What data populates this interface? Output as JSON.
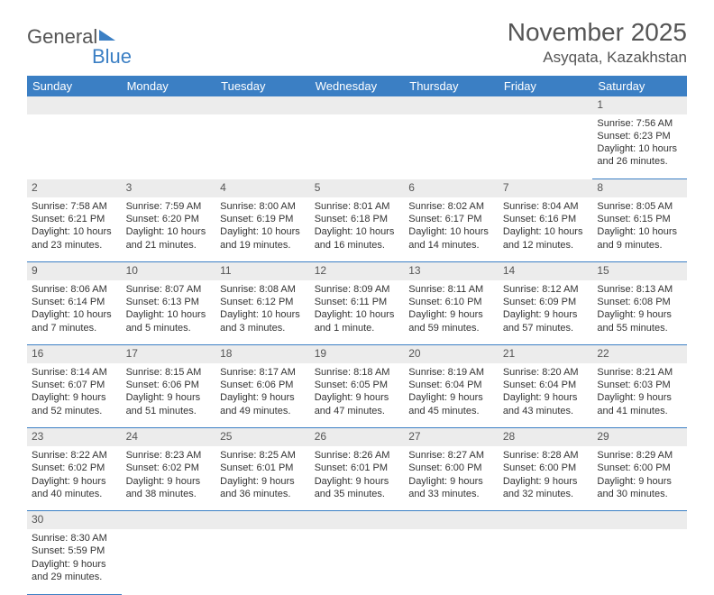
{
  "logo": {
    "general": "General",
    "blue": "Blue"
  },
  "title": {
    "month": "November 2025",
    "location": "Asyqata, Kazakhstan"
  },
  "colors": {
    "header_bg": "#3b7fc4",
    "daynum_bg": "#ececec",
    "border": "#3b7fc4"
  },
  "weekdays": [
    "Sunday",
    "Monday",
    "Tuesday",
    "Wednesday",
    "Thursday",
    "Friday",
    "Saturday"
  ],
  "weeks": [
    [
      null,
      null,
      null,
      null,
      null,
      null,
      {
        "n": "1",
        "sunrise": "Sunrise: 7:56 AM",
        "sunset": "Sunset: 6:23 PM",
        "day1": "Daylight: 10 hours",
        "day2": "and 26 minutes."
      }
    ],
    [
      {
        "n": "2",
        "sunrise": "Sunrise: 7:58 AM",
        "sunset": "Sunset: 6:21 PM",
        "day1": "Daylight: 10 hours",
        "day2": "and 23 minutes."
      },
      {
        "n": "3",
        "sunrise": "Sunrise: 7:59 AM",
        "sunset": "Sunset: 6:20 PM",
        "day1": "Daylight: 10 hours",
        "day2": "and 21 minutes."
      },
      {
        "n": "4",
        "sunrise": "Sunrise: 8:00 AM",
        "sunset": "Sunset: 6:19 PM",
        "day1": "Daylight: 10 hours",
        "day2": "and 19 minutes."
      },
      {
        "n": "5",
        "sunrise": "Sunrise: 8:01 AM",
        "sunset": "Sunset: 6:18 PM",
        "day1": "Daylight: 10 hours",
        "day2": "and 16 minutes."
      },
      {
        "n": "6",
        "sunrise": "Sunrise: 8:02 AM",
        "sunset": "Sunset: 6:17 PM",
        "day1": "Daylight: 10 hours",
        "day2": "and 14 minutes."
      },
      {
        "n": "7",
        "sunrise": "Sunrise: 8:04 AM",
        "sunset": "Sunset: 6:16 PM",
        "day1": "Daylight: 10 hours",
        "day2": "and 12 minutes."
      },
      {
        "n": "8",
        "sunrise": "Sunrise: 8:05 AM",
        "sunset": "Sunset: 6:15 PM",
        "day1": "Daylight: 10 hours",
        "day2": "and 9 minutes."
      }
    ],
    [
      {
        "n": "9",
        "sunrise": "Sunrise: 8:06 AM",
        "sunset": "Sunset: 6:14 PM",
        "day1": "Daylight: 10 hours",
        "day2": "and 7 minutes."
      },
      {
        "n": "10",
        "sunrise": "Sunrise: 8:07 AM",
        "sunset": "Sunset: 6:13 PM",
        "day1": "Daylight: 10 hours",
        "day2": "and 5 minutes."
      },
      {
        "n": "11",
        "sunrise": "Sunrise: 8:08 AM",
        "sunset": "Sunset: 6:12 PM",
        "day1": "Daylight: 10 hours",
        "day2": "and 3 minutes."
      },
      {
        "n": "12",
        "sunrise": "Sunrise: 8:09 AM",
        "sunset": "Sunset: 6:11 PM",
        "day1": "Daylight: 10 hours",
        "day2": "and 1 minute."
      },
      {
        "n": "13",
        "sunrise": "Sunrise: 8:11 AM",
        "sunset": "Sunset: 6:10 PM",
        "day1": "Daylight: 9 hours",
        "day2": "and 59 minutes."
      },
      {
        "n": "14",
        "sunrise": "Sunrise: 8:12 AM",
        "sunset": "Sunset: 6:09 PM",
        "day1": "Daylight: 9 hours",
        "day2": "and 57 minutes."
      },
      {
        "n": "15",
        "sunrise": "Sunrise: 8:13 AM",
        "sunset": "Sunset: 6:08 PM",
        "day1": "Daylight: 9 hours",
        "day2": "and 55 minutes."
      }
    ],
    [
      {
        "n": "16",
        "sunrise": "Sunrise: 8:14 AM",
        "sunset": "Sunset: 6:07 PM",
        "day1": "Daylight: 9 hours",
        "day2": "and 52 minutes."
      },
      {
        "n": "17",
        "sunrise": "Sunrise: 8:15 AM",
        "sunset": "Sunset: 6:06 PM",
        "day1": "Daylight: 9 hours",
        "day2": "and 51 minutes."
      },
      {
        "n": "18",
        "sunrise": "Sunrise: 8:17 AM",
        "sunset": "Sunset: 6:06 PM",
        "day1": "Daylight: 9 hours",
        "day2": "and 49 minutes."
      },
      {
        "n": "19",
        "sunrise": "Sunrise: 8:18 AM",
        "sunset": "Sunset: 6:05 PM",
        "day1": "Daylight: 9 hours",
        "day2": "and 47 minutes."
      },
      {
        "n": "20",
        "sunrise": "Sunrise: 8:19 AM",
        "sunset": "Sunset: 6:04 PM",
        "day1": "Daylight: 9 hours",
        "day2": "and 45 minutes."
      },
      {
        "n": "21",
        "sunrise": "Sunrise: 8:20 AM",
        "sunset": "Sunset: 6:04 PM",
        "day1": "Daylight: 9 hours",
        "day2": "and 43 minutes."
      },
      {
        "n": "22",
        "sunrise": "Sunrise: 8:21 AM",
        "sunset": "Sunset: 6:03 PM",
        "day1": "Daylight: 9 hours",
        "day2": "and 41 minutes."
      }
    ],
    [
      {
        "n": "23",
        "sunrise": "Sunrise: 8:22 AM",
        "sunset": "Sunset: 6:02 PM",
        "day1": "Daylight: 9 hours",
        "day2": "and 40 minutes."
      },
      {
        "n": "24",
        "sunrise": "Sunrise: 8:23 AM",
        "sunset": "Sunset: 6:02 PM",
        "day1": "Daylight: 9 hours",
        "day2": "and 38 minutes."
      },
      {
        "n": "25",
        "sunrise": "Sunrise: 8:25 AM",
        "sunset": "Sunset: 6:01 PM",
        "day1": "Daylight: 9 hours",
        "day2": "and 36 minutes."
      },
      {
        "n": "26",
        "sunrise": "Sunrise: 8:26 AM",
        "sunset": "Sunset: 6:01 PM",
        "day1": "Daylight: 9 hours",
        "day2": "and 35 minutes."
      },
      {
        "n": "27",
        "sunrise": "Sunrise: 8:27 AM",
        "sunset": "Sunset: 6:00 PM",
        "day1": "Daylight: 9 hours",
        "day2": "and 33 minutes."
      },
      {
        "n": "28",
        "sunrise": "Sunrise: 8:28 AM",
        "sunset": "Sunset: 6:00 PM",
        "day1": "Daylight: 9 hours",
        "day2": "and 32 minutes."
      },
      {
        "n": "29",
        "sunrise": "Sunrise: 8:29 AM",
        "sunset": "Sunset: 6:00 PM",
        "day1": "Daylight: 9 hours",
        "day2": "and 30 minutes."
      }
    ],
    [
      {
        "n": "30",
        "sunrise": "Sunrise: 8:30 AM",
        "sunset": "Sunset: 5:59 PM",
        "day1": "Daylight: 9 hours",
        "day2": "and 29 minutes."
      },
      null,
      null,
      null,
      null,
      null,
      null
    ]
  ]
}
